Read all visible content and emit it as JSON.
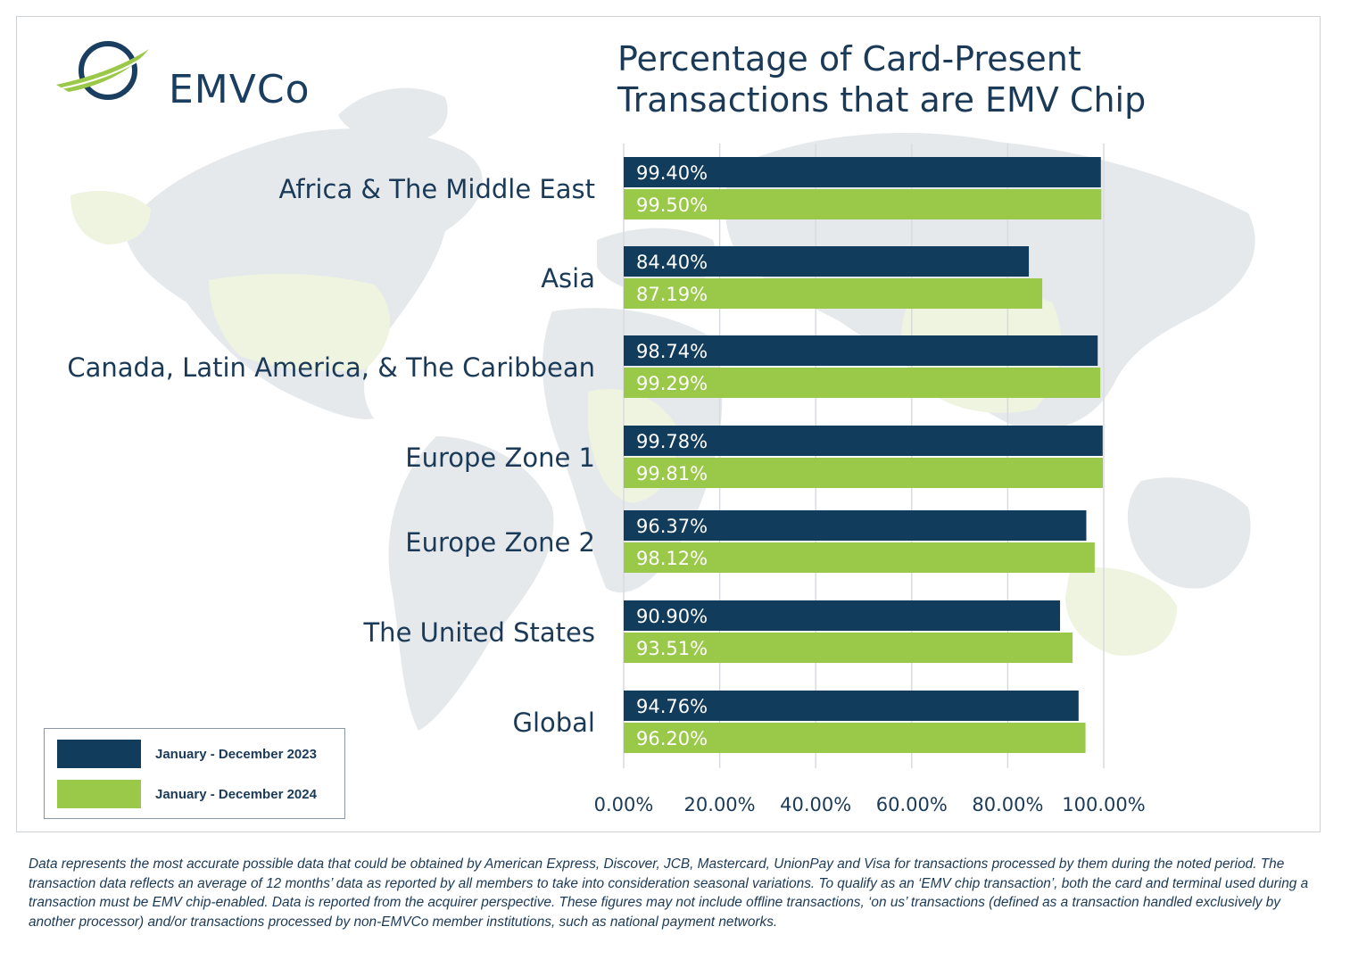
{
  "brand": {
    "name": "EMVCo",
    "navy": "#123c5b",
    "green": "#9ac848"
  },
  "title_lines": [
    "Percentage of Card-Present",
    "Transactions that are EMV Chip"
  ],
  "chart_data": {
    "type": "bar",
    "orientation": "horizontal",
    "categories": [
      "Africa & The Middle East",
      "Asia",
      "Canada, Latin America, & The Caribbean",
      "Europe Zone 1",
      "Europe Zone 2",
      "The United States",
      "Global"
    ],
    "series": [
      {
        "name": "January - December 2023",
        "color": "#123c5b",
        "values": [
          99.4,
          84.4,
          98.74,
          99.78,
          96.37,
          90.9,
          94.76
        ],
        "labels": [
          "99.40%",
          "84.40%",
          "98.74%",
          "99.78%",
          "96.37%",
          "90.90%",
          "94.76%"
        ]
      },
      {
        "name": "January - December 2024",
        "color": "#9ac848",
        "values": [
          99.5,
          87.19,
          99.29,
          99.81,
          98.12,
          93.51,
          96.2
        ],
        "labels": [
          "99.50%",
          "87.19%",
          "99.29%",
          "99.81%",
          "98.12%",
          "93.51%",
          "96.20%"
        ]
      }
    ],
    "xlim": [
      0,
      100
    ],
    "x_ticks": [
      "0.00%",
      "20.00%",
      "40.00%",
      "60.00%",
      "80.00%",
      "100.00%"
    ],
    "grid": true,
    "legend_position": "bottom-left"
  },
  "footnote": "Data represents the most accurate possible data that could be obtained by American Express, Discover, JCB, Mastercard, UnionPay and Visa for transactions processed by them during the noted period. The transaction data reflects an average of 12 months’ data as reported by all members to take into consideration seasonal variations. To qualify as an ‘EMV chip transaction’, both the card and terminal used during a transaction must be EMV chip-enabled. Data is reported from the acquirer perspective. These figures may not include offline transactions, ‘on us’ transactions (defined as a transaction handled exclusively by another processor) and/or transactions processed by non-EMVCo member institutions, such as national payment networks."
}
